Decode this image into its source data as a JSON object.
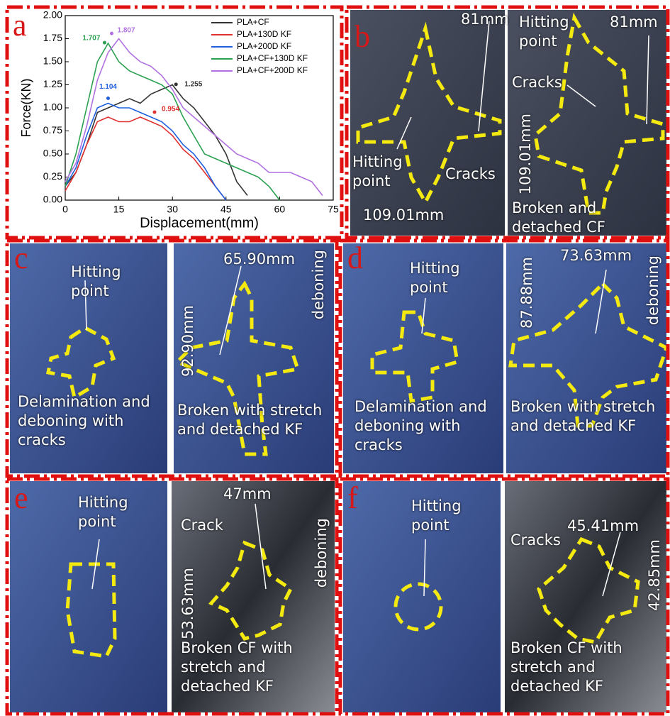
{
  "chart_data": {
    "type": "line",
    "label": "a",
    "xlabel": "Displacement(mm)",
    "ylabel": "Force(KN)",
    "x": [
      0,
      3,
      6,
      9,
      12,
      15,
      18,
      21,
      24,
      27,
      30,
      33,
      36,
      39,
      42,
      45,
      48,
      51,
      54,
      57,
      60,
      63,
      66,
      69,
      72
    ],
    "series": [
      {
        "name": "PLA+CF",
        "color": "#333333",
        "values": [
          0.15,
          0.3,
          0.6,
          0.95,
          1.0,
          1.05,
          1.1,
          1.05,
          1.15,
          1.2,
          1.25,
          1.1,
          1.0,
          0.85,
          0.7,
          0.5,
          0.2,
          0.05,
          null,
          null,
          null,
          null,
          null,
          null,
          null
        ]
      },
      {
        "name": "PLA+130D KF",
        "color": "#e03030",
        "values": [
          0.1,
          0.3,
          0.6,
          0.85,
          0.9,
          0.85,
          0.85,
          0.9,
          0.85,
          0.8,
          0.7,
          0.55,
          0.45,
          0.3,
          0.15,
          0.0,
          null,
          null,
          null,
          null,
          null,
          null,
          null,
          null,
          null
        ]
      },
      {
        "name": "PLA+200D KF",
        "color": "#2060e0",
        "values": [
          0.15,
          0.35,
          0.7,
          1.0,
          1.05,
          1.0,
          1.0,
          0.95,
          0.9,
          0.85,
          0.75,
          0.6,
          0.5,
          0.35,
          0.15,
          0.0,
          null,
          null,
          null,
          null,
          null,
          null,
          null,
          null,
          null
        ]
      },
      {
        "name": "PLA+CF+130D KF",
        "color": "#2aa050",
        "values": [
          0.15,
          0.5,
          1.0,
          1.5,
          1.7,
          1.5,
          1.4,
          1.35,
          1.3,
          1.25,
          1.15,
          0.9,
          0.7,
          0.5,
          0.45,
          0.4,
          0.35,
          0.3,
          0.25,
          0.15,
          0.0,
          null,
          null,
          null,
          null
        ]
      },
      {
        "name": "PLA+CF+200D KF",
        "color": "#b070e0",
        "values": [
          0.2,
          0.4,
          0.8,
          1.3,
          1.6,
          1.75,
          1.6,
          1.5,
          1.45,
          1.35,
          1.2,
          1.0,
          0.9,
          0.8,
          0.7,
          0.6,
          0.5,
          0.45,
          0.4,
          0.3,
          0.3,
          0.3,
          0.25,
          0.2,
          0.05
        ]
      }
    ],
    "annotations": [
      {
        "value": 1.707,
        "x": 11,
        "color": "#2aa050"
      },
      {
        "value": 1.807,
        "x": 13,
        "color": "#b070e0"
      },
      {
        "value": 1.104,
        "x": 12,
        "color": "#2060e0"
      },
      {
        "value": 0.954,
        "x": 25,
        "color": "#e03030"
      },
      {
        "value": 1.255,
        "x": 31,
        "color": "#333333"
      }
    ],
    "xlim": [
      0,
      75
    ],
    "xticks": [
      0,
      15,
      30,
      45,
      60,
      75
    ],
    "ylim": [
      0,
      2.0
    ],
    "yticks": [
      {
        "value": 0,
        "label": "0.00"
      },
      {
        "value": 0.25,
        "label": "0.25"
      },
      {
        "value": 0.5,
        "label": "0.50"
      },
      {
        "value": 0.75,
        "label": "0.75"
      },
      {
        "value": 1.0,
        "label": "1.00"
      },
      {
        "value": 1.25,
        "label": "1.25"
      },
      {
        "value": 1.5,
        "label": "1.50"
      },
      {
        "value": 1.75,
        "label": "1.75"
      },
      {
        "value": 2.0,
        "label": "2.00"
      }
    ]
  },
  "panels": [
    {
      "label": "b",
      "texts": [
        "81mm",
        "Hitting point",
        "Cracks",
        "109.01mm",
        "Hitting point",
        "81mm",
        "Cracks",
        "109.01mm",
        "Broken and detached CF"
      ]
    },
    {
      "label": "c",
      "texts": [
        "Hitting point",
        "Delamination and deboning with cracks",
        "65.90mm",
        "92.90mm",
        "deboning",
        "Broken with stretch and detached KF"
      ]
    },
    {
      "label": "d",
      "texts": [
        "Hitting point",
        "Delamination and deboning with cracks",
        "73.63mm",
        "87.88mm",
        "deboning",
        "Broken with stretch and detached KF"
      ]
    },
    {
      "label": "e",
      "texts": [
        "Hitting point",
        "47mm",
        "Crack",
        "53.63mm",
        "deboning",
        "Broken CF with stretch and detached KF"
      ]
    },
    {
      "label": "f",
      "texts": [
        "Hitting point",
        "Cracks",
        "45.41mm",
        "42.85mm",
        "Broken CF with stretch and detached KF"
      ]
    }
  ]
}
